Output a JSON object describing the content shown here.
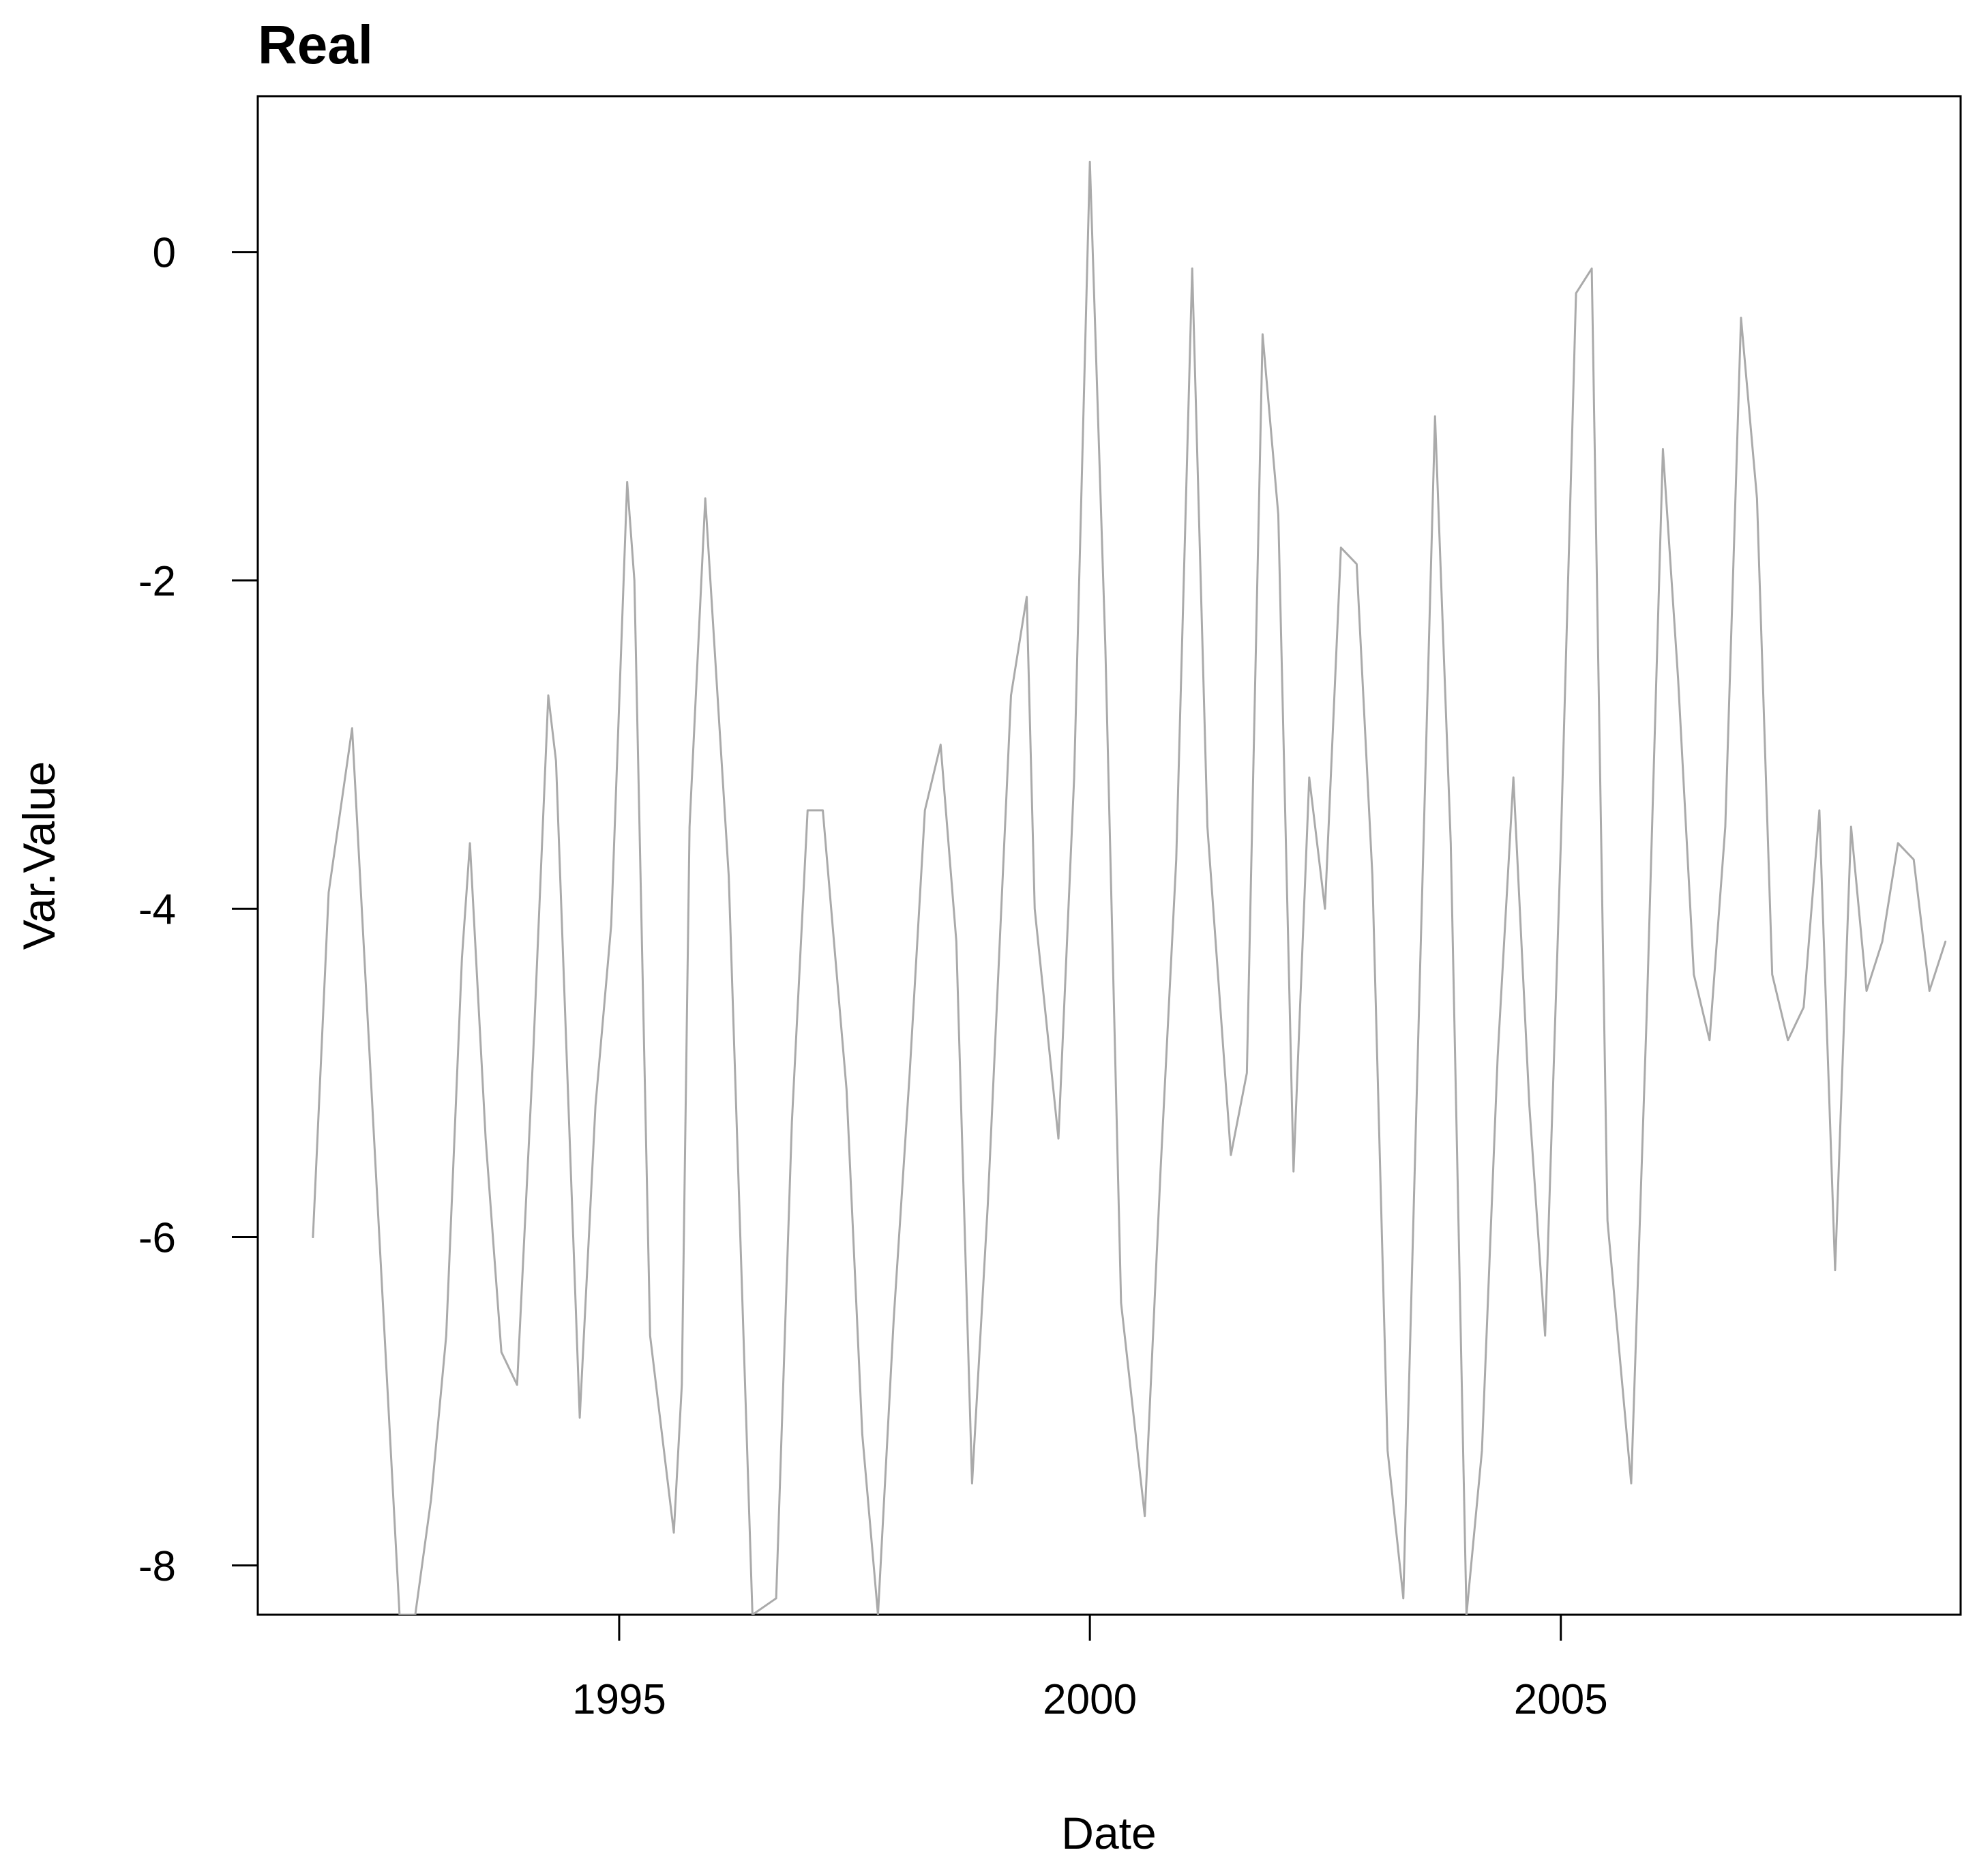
{
  "chart_data": {
    "type": "line",
    "title": "Real",
    "xlabel": "Date",
    "ylabel": "Var.Value",
    "xlim": [
      "1991-03-01",
      "2009-04-01"
    ],
    "ylim": [
      -8.3,
      0.95
    ],
    "x_ticks": [
      {
        "value": "1995-01-01",
        "label": "1995"
      },
      {
        "value": "2000-01-01",
        "label": "2000"
      },
      {
        "value": "2005-01-01",
        "label": "2005"
      }
    ],
    "y_ticks": [
      {
        "value": -8,
        "label": "-8"
      },
      {
        "value": -6,
        "label": "-6"
      },
      {
        "value": -4,
        "label": "-4"
      },
      {
        "value": -2,
        "label": "-2"
      },
      {
        "value": 0,
        "label": "0"
      }
    ],
    "grid": false,
    "legend": "none",
    "series": [
      {
        "color": "#aaaaaa",
        "x": [
          "1991-10-01",
          "1991-12-01",
          "1992-03-01",
          "1992-06-01",
          "1992-09-01",
          "1992-11-01",
          "1993-01-01",
          "1993-03-01",
          "1993-05-01",
          "1993-06-01",
          "1993-08-01",
          "1993-10-01",
          "1993-12-01",
          "1994-02-01",
          "1994-04-01",
          "1994-05-01",
          "1994-08-01",
          "1994-10-01",
          "1994-12-01",
          "1995-02-01",
          "1995-03-01",
          "1995-05-01",
          "1995-08-01",
          "1995-09-01",
          "1995-10-01",
          "1995-12-01",
          "1996-03-01",
          "1996-06-01",
          "1996-09-01",
          "1996-11-01",
          "1997-01-01",
          "1997-03-01",
          "1997-06-01",
          "1997-08-01",
          "1997-10-01",
          "1997-12-01",
          "1998-02-01",
          "1998-04-01",
          "1998-06-01",
          "1998-08-01",
          "1998-10-01",
          "1998-12-01",
          "1999-03-01",
          "1999-05-01",
          "1999-06-01",
          "1999-09-01",
          "1999-11-01",
          "2000-01-01",
          "2000-03-01",
          "2000-05-01",
          "2000-08-01",
          "2000-10-01",
          "2000-12-01",
          "2001-02-01",
          "2001-04-01",
          "2001-07-01",
          "2001-09-01",
          "2001-11-01",
          "2002-01-01",
          "2002-03-01",
          "2002-05-01",
          "2002-07-01",
          "2002-09-01",
          "2002-11-01",
          "2003-01-01",
          "2003-03-01",
          "2003-05-01",
          "2003-07-01",
          "2003-09-01",
          "2003-11-01",
          "2004-01-01",
          "2004-03-01",
          "2004-05-01",
          "2004-07-01",
          "2004-09-01",
          "2004-11-01",
          "2005-01-01",
          "2005-03-01",
          "2005-05-01",
          "2005-07-01",
          "2005-10-01",
          "2005-12-01",
          "2006-02-01",
          "2006-04-01",
          "2006-06-01",
          "2006-08-01",
          "2006-10-01",
          "2006-12-01",
          "2007-02-01",
          "2007-04-01",
          "2007-06-01",
          "2007-08-01",
          "2007-10-01",
          "2007-12-01",
          "2008-02-01",
          "2008-04-01",
          "2008-06-01",
          "2008-08-01",
          "2008-10-01",
          "2008-12-01",
          "2009-02-01"
        ],
        "values": [
          -6.0,
          -3.9,
          -2.9,
          -5.6,
          -8.3,
          -8.3,
          -7.6,
          -6.6,
          -4.3,
          -3.6,
          -5.4,
          -6.7,
          -6.9,
          -4.9,
          -2.7,
          -3.1,
          -7.1,
          -5.2,
          -4.1,
          -1.4,
          -2.0,
          -6.6,
          -7.8,
          -6.9,
          -3.5,
          -1.5,
          -3.8,
          -8.3,
          -8.2,
          -5.3,
          -3.4,
          -3.4,
          -5.1,
          -7.2,
          -8.3,
          -6.5,
          -5.0,
          -3.4,
          -3.0,
          -4.2,
          -7.5,
          -5.8,
          -2.7,
          -2.1,
          -4.0,
          -5.4,
          -3.2,
          0.55,
          -2.4,
          -6.4,
          -7.7,
          -5.6,
          -3.7,
          -0.1,
          -3.5,
          -5.5,
          -5.0,
          -0.5,
          -1.6,
          -5.6,
          -3.2,
          -4.0,
          -1.8,
          -1.9,
          -3.8,
          -7.3,
          -8.2,
          -4.6,
          -1.0,
          -3.6,
          -8.3,
          -7.3,
          -4.9,
          -3.2,
          -5.2,
          -6.6,
          -3.6,
          -0.25,
          -0.1,
          -5.9,
          -7.5,
          -4.6,
          -1.2,
          -2.6,
          -4.4,
          -4.8,
          -3.5,
          -0.4,
          -1.5,
          -4.4,
          -4.8,
          -4.6,
          -3.4,
          -6.2,
          -3.5,
          -4.5,
          -4.2,
          -3.6,
          -3.7,
          -4.5,
          -4.2
        ]
      }
    ]
  }
}
